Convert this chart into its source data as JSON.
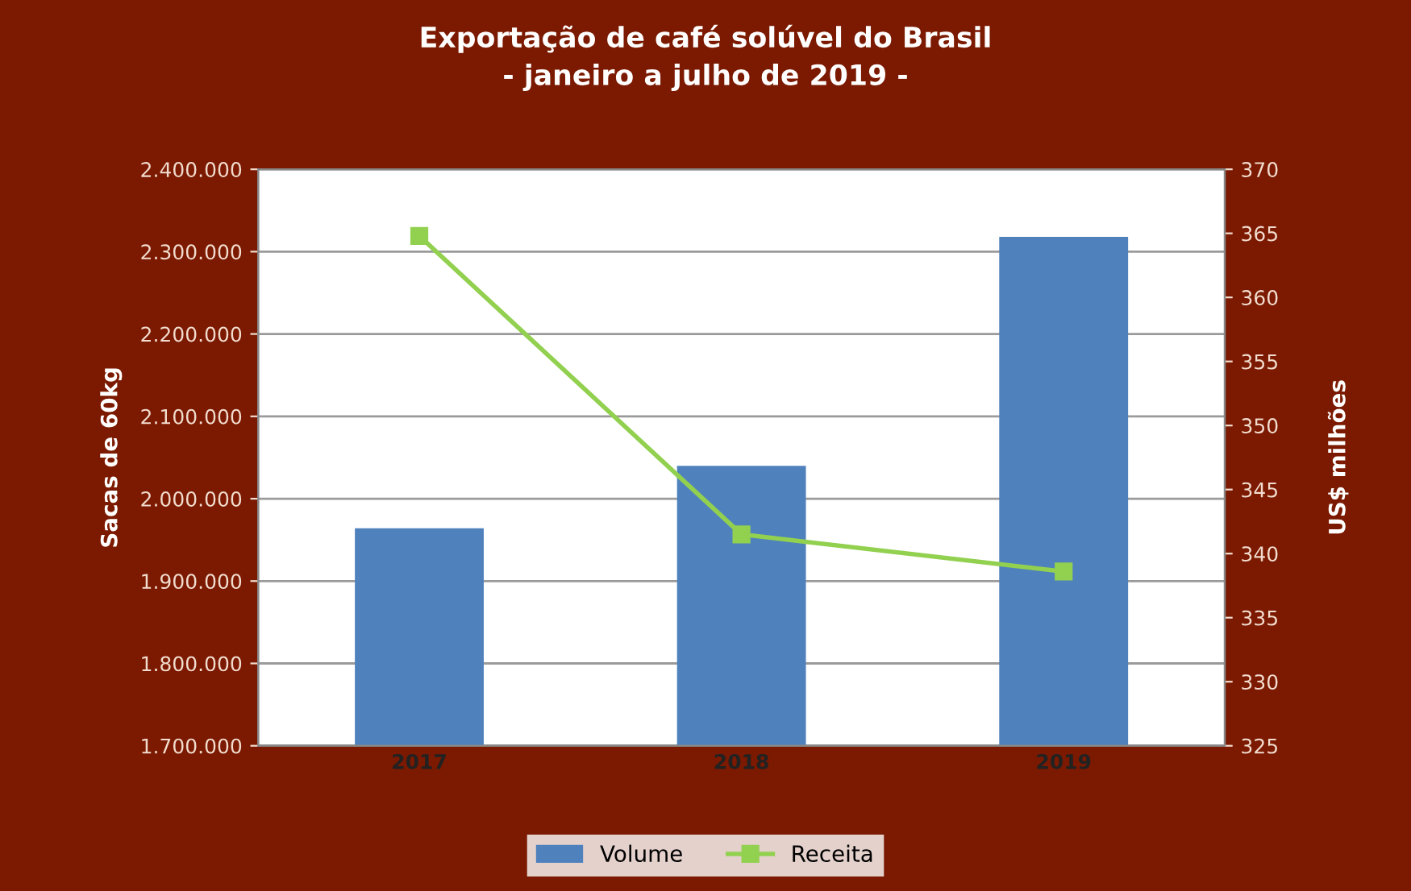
{
  "chart_data": {
    "type": "bar",
    "title": "Exportação de café solúvel do Brasil\n- janeiro a julho de 2019 -",
    "ylabel": "Sacas de 60kg",
    "y2label": "US$ milhões",
    "categories": [
      "2017",
      "2018",
      "2019"
    ],
    "series": [
      {
        "name": "Volume",
        "color": "#4f81bd",
        "values": [
          1964000,
          2040000,
          2318000
        ]
      },
      {
        "name": "Receita",
        "type": "line",
        "axis": "y2",
        "color": "#92d050",
        "marker": "square",
        "values": [
          364.8,
          341.5,
          338.6
        ]
      }
    ],
    "ylim": [
      1700000,
      2400000
    ],
    "yticks": [
      {
        "value": 1700000,
        "label": "1.700.000"
      },
      {
        "value": 1800000,
        "label": "1.800.000"
      },
      {
        "value": 1900000,
        "label": "1.900.000"
      },
      {
        "value": 2000000,
        "label": "2.000.000"
      },
      {
        "value": 2100000,
        "label": "2.100.000"
      },
      {
        "value": 2200000,
        "label": "2.200.000"
      },
      {
        "value": 2300000,
        "label": "2.300.000"
      },
      {
        "value": 2400000,
        "label": "2.400.000"
      }
    ],
    "y2lim": [
      325,
      370
    ],
    "y2ticks": [
      325,
      330,
      335,
      340,
      345,
      350,
      355,
      360,
      365,
      370
    ],
    "grid": "y",
    "legend": "bottom"
  }
}
